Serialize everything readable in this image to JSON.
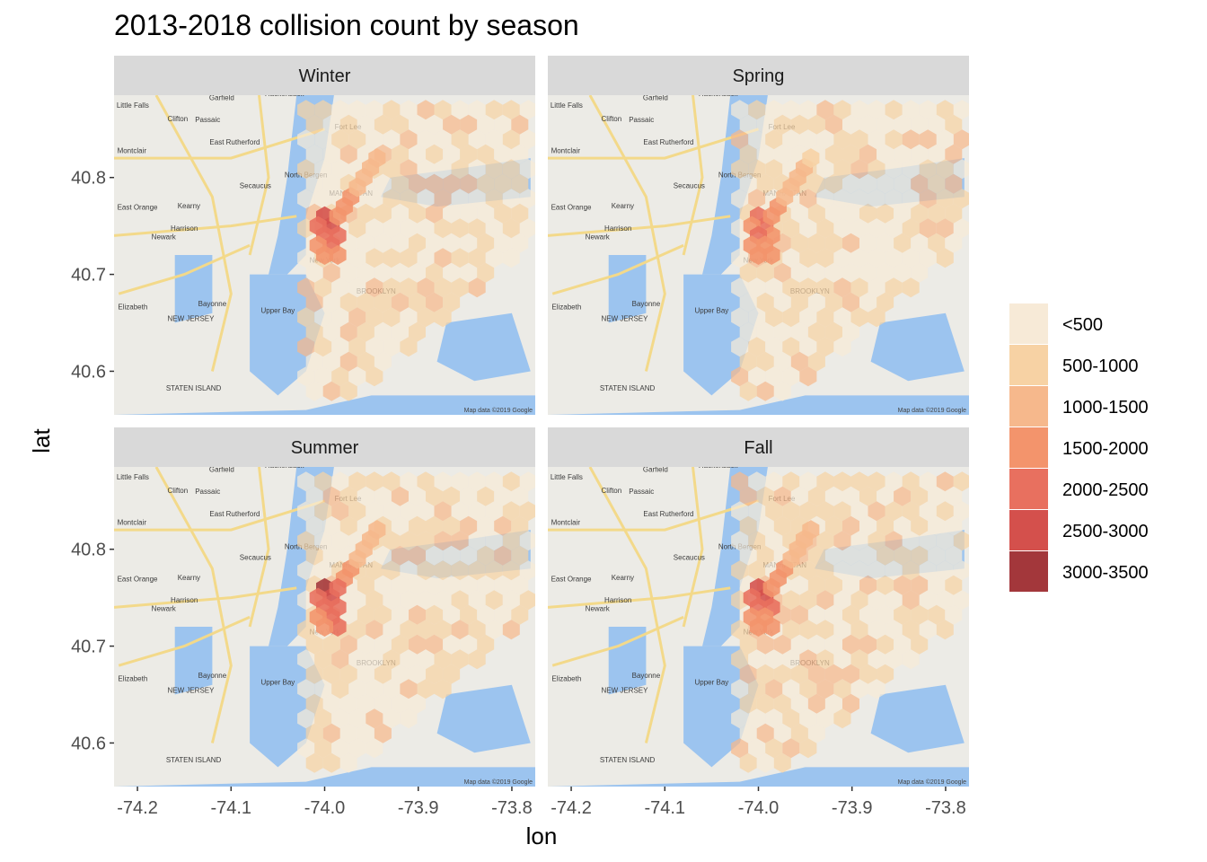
{
  "chart_data": {
    "type": "heatmap",
    "title": "2013-2018 collision count by season",
    "xlabel": "lon",
    "ylabel": "lat",
    "xlim": [
      -74.225,
      -73.775
    ],
    "ylim": [
      40.555,
      40.885
    ],
    "x_ticks": [
      -74.2,
      -74.1,
      -74.0,
      -73.9,
      -73.8
    ],
    "x_tick_labels": [
      "-74.2",
      "-74.1",
      "-74.0",
      "-73.9",
      "-73.8"
    ],
    "y_ticks": [
      40.6,
      40.7,
      40.8
    ],
    "y_tick_labels": [
      "40.6",
      "40.7",
      "40.8"
    ],
    "facets": [
      "Winter",
      "Spring",
      "Summer",
      "Fall"
    ],
    "legend": {
      "placement": "right",
      "labels": [
        "<500",
        "500-1000",
        "1000-1500",
        "1500-2000",
        "2000-2500",
        "2500-3000",
        "3000-3500"
      ],
      "colors": [
        "#f7ead7",
        "#f7d2a4",
        "#f6b88c",
        "#f3946c",
        "#e8705f",
        "#d4504c",
        "#a3373b"
      ]
    },
    "basemap": {
      "source": "Map data ©2019 Google",
      "labels": [
        {
          "text": "Hackensack",
          "lon": -74.043,
          "lat": 40.884
        },
        {
          "text": "Garfield",
          "lon": -74.11,
          "lat": 40.88
        },
        {
          "text": "Little Falls",
          "lon": -74.205,
          "lat": 40.872
        },
        {
          "text": "Clifton",
          "lon": -74.157,
          "lat": 40.858
        },
        {
          "text": "Passaic",
          "lon": -74.125,
          "lat": 40.857
        },
        {
          "text": "Fort Lee",
          "lon": -73.975,
          "lat": 40.85
        },
        {
          "text": "East Rutherford",
          "lon": -74.096,
          "lat": 40.834
        },
        {
          "text": "Montclair",
          "lon": -74.206,
          "lat": 40.825
        },
        {
          "text": "North Bergen",
          "lon": -74.02,
          "lat": 40.8
        },
        {
          "text": "Secaucus",
          "lon": -74.074,
          "lat": 40.789
        },
        {
          "text": "East Orange",
          "lon": -74.2,
          "lat": 40.767
        },
        {
          "text": "Kearny",
          "lon": -74.145,
          "lat": 40.768
        },
        {
          "text": "Newark",
          "lon": -74.172,
          "lat": 40.736
        },
        {
          "text": "Harrison",
          "lon": -74.15,
          "lat": 40.745
        },
        {
          "text": "New York",
          "lon": -74.0,
          "lat": 40.712
        },
        {
          "text": "Bayonne",
          "lon": -74.12,
          "lat": 40.667
        },
        {
          "text": "Elizabeth",
          "lon": -74.205,
          "lat": 40.664
        },
        {
          "text": "NEW JERSEY",
          "lon": -74.143,
          "lat": 40.652
        },
        {
          "text": "BROOKLYN",
          "lon": -73.945,
          "lat": 40.68
        },
        {
          "text": "MANHATTAN",
          "lon": -73.972,
          "lat": 40.781
        },
        {
          "text": "Upper Bay",
          "lon": -74.05,
          "lat": 40.66
        },
        {
          "text": "STATEN ISLAND",
          "lon": -74.14,
          "lat": 40.58
        }
      ]
    },
    "hex_counts": {
      "comment_units": "collision count per hex cell; cells listed as [lon, lat, count]",
      "Winter": [
        [
          -74.0,
          40.76,
          2700
        ],
        [
          -73.993,
          40.75,
          2500
        ],
        [
          -74.007,
          40.75,
          2200
        ],
        [
          -73.986,
          40.74,
          2100
        ],
        [
          -74.0,
          40.74,
          2300
        ],
        [
          -73.993,
          40.73,
          2000
        ],
        [
          -74.007,
          40.73,
          1800
        ],
        [
          -73.986,
          40.72,
          1900
        ],
        [
          -74.0,
          40.72,
          1700
        ],
        [
          -73.979,
          40.77,
          1800
        ],
        [
          -73.986,
          40.76,
          1900
        ],
        [
          -73.972,
          40.78,
          1600
        ],
        [
          -73.965,
          40.79,
          1300
        ],
        [
          -73.958,
          40.8,
          1200
        ],
        [
          -73.951,
          40.81,
          1100
        ],
        [
          -73.944,
          40.82,
          1000
        ]
      ],
      "Spring": [
        [
          -74.0,
          40.76,
          2200
        ],
        [
          -73.993,
          40.75,
          2100
        ],
        [
          -74.007,
          40.75,
          1900
        ],
        [
          -73.986,
          40.74,
          1900
        ],
        [
          -74.0,
          40.74,
          2100
        ],
        [
          -73.993,
          40.73,
          1800
        ],
        [
          -74.007,
          40.73,
          1600
        ],
        [
          -73.986,
          40.72,
          1700
        ],
        [
          -74.0,
          40.72,
          1500
        ],
        [
          -73.979,
          40.77,
          1600
        ],
        [
          -73.986,
          40.76,
          1700
        ],
        [
          -73.972,
          40.78,
          1400
        ],
        [
          -73.965,
          40.79,
          1200
        ],
        [
          -73.958,
          40.8,
          1100
        ],
        [
          -73.951,
          40.81,
          1000
        ],
        [
          -73.944,
          40.82,
          900
        ]
      ],
      "Summer": [
        [
          -74.0,
          40.76,
          3200
        ],
        [
          -73.993,
          40.75,
          2700
        ],
        [
          -74.007,
          40.75,
          2300
        ],
        [
          -73.986,
          40.74,
          2300
        ],
        [
          -74.0,
          40.74,
          2400
        ],
        [
          -73.993,
          40.73,
          2100
        ],
        [
          -74.007,
          40.73,
          1900
        ],
        [
          -73.986,
          40.72,
          2100
        ],
        [
          -74.0,
          40.72,
          1800
        ],
        [
          -73.979,
          40.77,
          1900
        ],
        [
          -73.986,
          40.76,
          2000
        ],
        [
          -73.972,
          40.78,
          1700
        ],
        [
          -73.965,
          40.79,
          1400
        ],
        [
          -73.958,
          40.8,
          1300
        ],
        [
          -73.951,
          40.81,
          1200
        ],
        [
          -73.944,
          40.82,
          1100
        ]
      ],
      "Fall": [
        [
          -74.0,
          40.76,
          2800
        ],
        [
          -73.993,
          40.75,
          2600
        ],
        [
          -74.007,
          40.75,
          2300
        ],
        [
          -73.986,
          40.74,
          2100
        ],
        [
          -74.0,
          40.74,
          2300
        ],
        [
          -73.993,
          40.73,
          1900
        ],
        [
          -74.007,
          40.73,
          1800
        ],
        [
          -73.986,
          40.72,
          1900
        ],
        [
          -74.0,
          40.72,
          1700
        ],
        [
          -73.979,
          40.77,
          1800
        ],
        [
          -73.986,
          40.76,
          1900
        ],
        [
          -73.972,
          40.78,
          1600
        ],
        [
          -73.965,
          40.79,
          1300
        ],
        [
          -73.958,
          40.8,
          1200
        ],
        [
          -73.951,
          40.81,
          1100
        ],
        [
          -73.944,
          40.82,
          1000
        ]
      ]
    }
  }
}
